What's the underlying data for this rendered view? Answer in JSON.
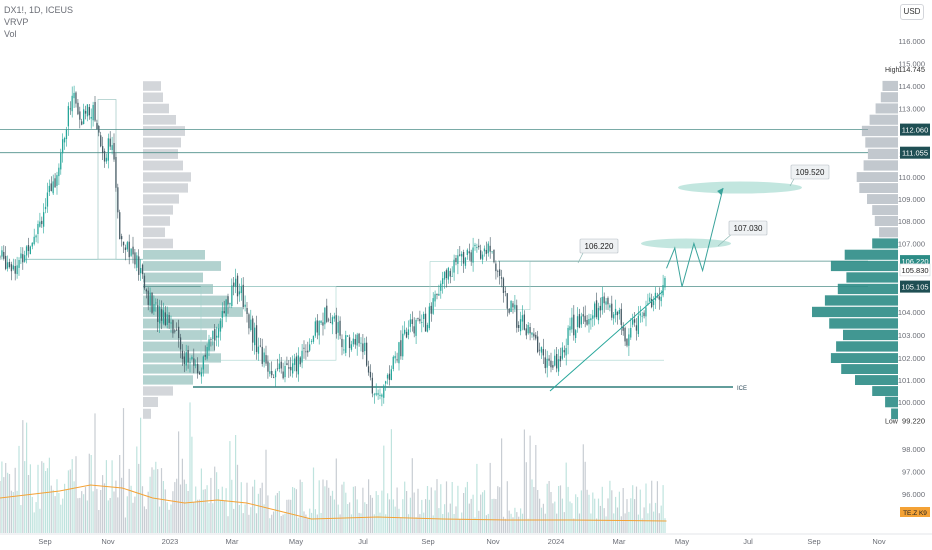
{
  "legend": {
    "symbol_line": "DX1!, 1D, ICEUS",
    "indicator_1": "VRVP",
    "indicator_2": "Vol"
  },
  "currency_button": "USD",
  "price_axis": {
    "ticks": [
      "116.000",
      "115.000",
      "114.000",
      "113.000",
      "111.000",
      "110.000",
      "109.000",
      "108.000",
      "107.000",
      "104.000",
      "103.000",
      "102.000",
      "101.000",
      "100.000",
      "98.000",
      "97.000",
      "96.000"
    ],
    "high_label": "High",
    "high_value": "114.745",
    "low_label": "Low",
    "low_value": "99.220",
    "badges": [
      {
        "value": "112.060",
        "style": "dark"
      },
      {
        "value": "111.055",
        "style": "dark"
      },
      {
        "value": "106.220",
        "style": "teal"
      },
      {
        "value": "105.830",
        "style": "plain"
      },
      {
        "value": "105.105",
        "style": "dark"
      }
    ],
    "volume_badge": "TE.Z K9"
  },
  "time_axis": {
    "labels": [
      "Sep",
      "Nov",
      "2023",
      "Mar",
      "May",
      "Jul",
      "Sep",
      "Nov",
      "2024",
      "Mar",
      "May",
      "Jul",
      "Sep",
      "Nov"
    ]
  },
  "annotations": {
    "callout_1": "106.220",
    "callout_2": "107.030",
    "callout_3": "109.520",
    "support_label": "ICE"
  },
  "colors": {
    "up": "#26a69a",
    "down": "#455a64",
    "level_line": "#4f8f8a",
    "ellipse": "#a8dcd1",
    "volume_ma": "#f4a235",
    "profile_top": "#9aa3ad",
    "profile_bottom": "#2c8c86"
  },
  "chart_data": {
    "type": "candlestick",
    "symbol": "DX1!",
    "interval": "1D",
    "exchange": "ICEUS",
    "ylim": [
      99.2,
      116.0
    ],
    "x_range": [
      "2022-08-15",
      "2024-11-30"
    ],
    "high": 114.745,
    "low": 99.22,
    "horizontal_levels": [
      112.06,
      111.055,
      106.22,
      105.105,
      100.7
    ],
    "close_path": [
      {
        "date": "2022-08-15",
        "close": 106.4
      },
      {
        "date": "2022-08-22",
        "close": 106.0
      },
      {
        "date": "2022-09-01",
        "close": 108.6
      },
      {
        "date": "2022-09-10",
        "close": 109.8
      },
      {
        "date": "2022-09-20",
        "close": 111.8
      },
      {
        "date": "2022-09-28",
        "close": 113.9
      },
      {
        "date": "2022-10-05",
        "close": 112.2
      },
      {
        "date": "2022-10-12",
        "close": 113.2
      },
      {
        "date": "2022-10-20",
        "close": 112.6
      },
      {
        "date": "2022-10-28",
        "close": 110.8
      },
      {
        "date": "2022-11-04",
        "close": 111.9
      },
      {
        "date": "2022-11-12",
        "close": 107.6
      },
      {
        "date": "2022-11-20",
        "close": 107.0
      },
      {
        "date": "2022-12-01",
        "close": 105.9
      },
      {
        "date": "2022-12-15",
        "close": 104.1
      },
      {
        "date": "2023-01-01",
        "close": 103.8
      },
      {
        "date": "2023-01-15",
        "close": 102.0
      },
      {
        "date": "2023-01-31",
        "close": 101.4
      },
      {
        "date": "2023-02-10",
        "close": 102.8
      },
      {
        "date": "2023-02-25",
        "close": 104.6
      },
      {
        "date": "2023-03-08",
        "close": 105.2
      },
      {
        "date": "2023-03-20",
        "close": 103.2
      },
      {
        "date": "2023-04-01",
        "close": 101.8
      },
      {
        "date": "2023-04-14",
        "close": 101.3
      },
      {
        "date": "2023-04-28",
        "close": 101.5
      },
      {
        "date": "2023-05-10",
        "close": 102.5
      },
      {
        "date": "2023-05-31",
        "close": 104.1
      },
      {
        "date": "2023-06-15",
        "close": 102.6
      },
      {
        "date": "2023-06-30",
        "close": 102.8
      },
      {
        "date": "2023-07-14",
        "close": 99.9
      },
      {
        "date": "2023-07-31",
        "close": 101.9
      },
      {
        "date": "2023-08-15",
        "close": 103.3
      },
      {
        "date": "2023-08-31",
        "close": 103.6
      },
      {
        "date": "2023-09-15",
        "close": 105.3
      },
      {
        "date": "2023-09-29",
        "close": 106.3
      },
      {
        "date": "2023-10-13",
        "close": 106.5
      },
      {
        "date": "2023-10-31",
        "close": 106.7
      },
      {
        "date": "2023-11-15",
        "close": 104.3
      },
      {
        "date": "2023-11-30",
        "close": 103.4
      },
      {
        "date": "2023-12-15",
        "close": 102.5
      },
      {
        "date": "2023-12-28",
        "close": 101.4
      },
      {
        "date": "2024-01-15",
        "close": 103.3
      },
      {
        "date": "2024-01-31",
        "close": 103.9
      },
      {
        "date": "2024-02-15",
        "close": 104.3
      },
      {
        "date": "2024-02-29",
        "close": 104.0
      },
      {
        "date": "2024-03-08",
        "close": 102.7
      },
      {
        "date": "2024-03-20",
        "close": 103.8
      },
      {
        "date": "2024-03-31",
        "close": 104.6
      },
      {
        "date": "2024-04-08",
        "close": 104.4
      },
      {
        "date": "2024-04-16",
        "close": 105.9
      }
    ],
    "projection_path": [
      {
        "date": "2024-04-16",
        "price": 105.9
      },
      {
        "date": "2024-04-24",
        "price": 106.8
      },
      {
        "date": "2024-05-01",
        "price": 105.1
      },
      {
        "date": "2024-05-12",
        "price": 107.0
      },
      {
        "date": "2024-05-20",
        "price": 105.8
      },
      {
        "date": "2024-06-08",
        "price": 109.5
      }
    ],
    "target_zones": [
      107.03,
      109.52
    ],
    "volume_profile_bins": [
      {
        "price": 114.0,
        "volume": 0.18
      },
      {
        "price": 113.5,
        "volume": 0.2
      },
      {
        "price": 113.0,
        "volume": 0.26
      },
      {
        "price": 112.5,
        "volume": 0.33
      },
      {
        "price": 112.0,
        "volume": 0.42
      },
      {
        "price": 111.5,
        "volume": 0.38
      },
      {
        "price": 111.0,
        "volume": 0.35
      },
      {
        "price": 110.5,
        "volume": 0.4
      },
      {
        "price": 110.0,
        "volume": 0.48
      },
      {
        "price": 109.5,
        "volume": 0.45
      },
      {
        "price": 109.0,
        "volume": 0.36
      },
      {
        "price": 108.5,
        "volume": 0.3
      },
      {
        "price": 108.0,
        "volume": 0.27
      },
      {
        "price": 107.5,
        "volume": 0.22
      },
      {
        "price": 107.0,
        "volume": 0.3
      },
      {
        "price": 106.5,
        "volume": 0.62
      },
      {
        "price": 106.0,
        "volume": 0.78
      },
      {
        "price": 105.5,
        "volume": 0.6
      },
      {
        "price": 105.0,
        "volume": 0.7
      },
      {
        "price": 104.5,
        "volume": 0.85
      },
      {
        "price": 104.0,
        "volume": 1.0
      },
      {
        "price": 103.5,
        "volume": 0.8
      },
      {
        "price": 103.0,
        "volume": 0.64
      },
      {
        "price": 102.5,
        "volume": 0.72
      },
      {
        "price": 102.0,
        "volume": 0.78
      },
      {
        "price": 101.5,
        "volume": 0.66
      },
      {
        "price": 101.0,
        "volume": 0.5
      },
      {
        "price": 100.5,
        "volume": 0.3
      },
      {
        "price": 100.0,
        "volume": 0.15
      },
      {
        "price": 99.5,
        "volume": 0.08
      }
    ],
    "volume_ma_path": [
      {
        "date": "2022-08-15",
        "value": 0.35
      },
      {
        "date": "2022-09-15",
        "value": 0.42
      },
      {
        "date": "2022-10-15",
        "value": 0.48
      },
      {
        "date": "2022-11-15",
        "value": 0.45
      },
      {
        "date": "2022-12-15",
        "value": 0.35
      },
      {
        "date": "2023-01-15",
        "value": 0.3
      },
      {
        "date": "2023-02-15",
        "value": 0.33
      },
      {
        "date": "2023-03-15",
        "value": 0.3
      },
      {
        "date": "2023-04-15",
        "value": 0.22
      },
      {
        "date": "2023-05-15",
        "value": 0.14
      },
      {
        "date": "2023-07-15",
        "value": 0.16
      },
      {
        "date": "2023-09-15",
        "value": 0.14
      },
      {
        "date": "2023-11-15",
        "value": 0.13
      },
      {
        "date": "2024-01-15",
        "value": 0.13
      },
      {
        "date": "2024-04-16",
        "value": 0.12
      }
    ]
  }
}
